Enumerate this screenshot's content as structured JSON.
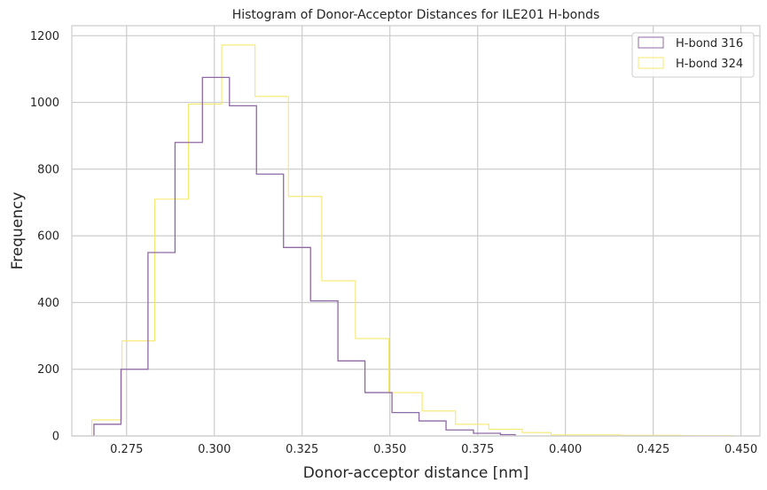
{
  "chart_data": {
    "type": "histogram",
    "title": "Histogram of Donor-Acceptor Distances for ILE201 H-bonds",
    "xlabel": "Donor-acceptor distance [nm]",
    "ylabel": "Frequency",
    "xlim": [
      0.2594,
      0.4554
    ],
    "ylim": [
      0,
      1230
    ],
    "xticks": [
      0.275,
      0.3,
      0.325,
      0.35,
      0.375,
      0.4,
      0.425,
      0.45
    ],
    "xtick_labels": [
      "0.275",
      "0.300",
      "0.325",
      "0.350",
      "0.375",
      "0.400",
      "0.425",
      "0.450"
    ],
    "yticks": [
      0,
      200,
      400,
      600,
      800,
      1000,
      1200
    ],
    "ytick_labels": [
      "0",
      "200",
      "400",
      "600",
      "800",
      "1000",
      "1200"
    ],
    "grid": true,
    "legend_position": "top-right",
    "series": [
      {
        "name": "H-bond 316",
        "color": "#8e6aa3",
        "bin_edges": [
          0.2657,
          0.2734,
          0.2811,
          0.2888,
          0.2966,
          0.3043,
          0.312,
          0.3197,
          0.3274,
          0.3352,
          0.3429,
          0.3506,
          0.3583,
          0.366,
          0.3738,
          0.3815,
          0.3857
        ],
        "counts": [
          35,
          200,
          550,
          880,
          1075,
          990,
          785,
          565,
          405,
          225,
          130,
          70,
          45,
          18,
          8,
          4
        ]
      },
      {
        "name": "H-bond 324",
        "color": "#f5e86e",
        "bin_edges": [
          0.2651,
          0.2737,
          0.283,
          0.2926,
          0.3021,
          0.3116,
          0.3211,
          0.3306,
          0.3402,
          0.3497,
          0.3592,
          0.3687,
          0.3782,
          0.3877,
          0.3959,
          0.416,
          0.433,
          0.448
        ],
        "counts": [
          48,
          285,
          710,
          995,
          1172,
          1018,
          718,
          465,
          292,
          130,
          75,
          35,
          20,
          10,
          3,
          2,
          1
        ]
      }
    ]
  }
}
